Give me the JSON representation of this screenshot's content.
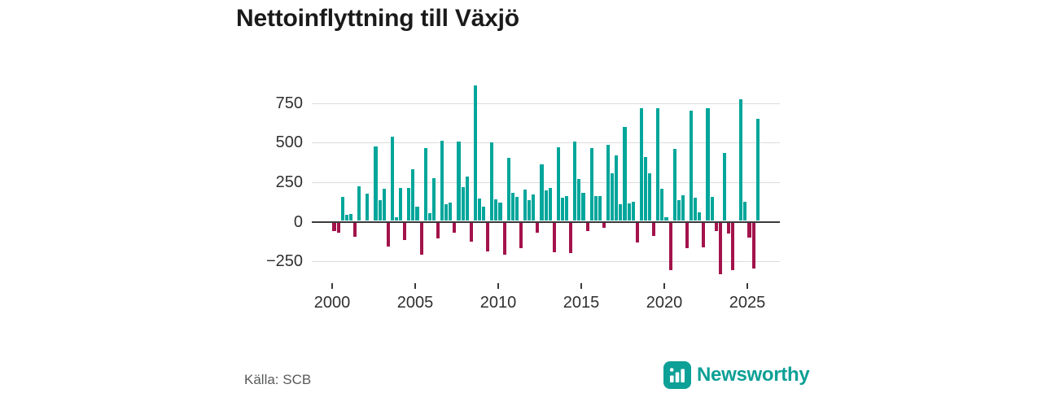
{
  "header": {
    "title": "Nettoinflyttning till Växjö"
  },
  "footer": {
    "source_label": "Källa: SCB",
    "brand_name": "Newsworthy"
  },
  "colors": {
    "positive": "#00A69B",
    "negative": "#A3134B",
    "brand": "#0DA096",
    "grid": "#dcdcdc",
    "axis": "#3a3a3a",
    "tick_text": "#303030",
    "source_text": "#58595b",
    "title_text": "#1a1a1a"
  },
  "chart_data": {
    "type": "bar",
    "title": "Nettoinflyttning till Växjö",
    "frequency": "quarterly",
    "start": "2000-Q1",
    "end": "2025-Q3",
    "values_by_year": {
      "2000": [
        -50,
        -60,
        150,
        40
      ],
      "2001": [
        45,
        -85,
        220,
        0
      ],
      "2002": [
        170,
        0,
        470,
        130
      ],
      "2003": [
        205,
        -150,
        530,
        25
      ],
      "2004": [
        210,
        -110,
        210,
        325
      ],
      "2005": [
        90,
        -200,
        460,
        50
      ],
      "2006": [
        270,
        -100,
        505,
        105
      ],
      "2007": [
        115,
        -60,
        500,
        215
      ],
      "2008": [
        280,
        -120,
        855,
        140
      ],
      "2009": [
        90,
        -180,
        495,
        135
      ],
      "2010": [
        115,
        -200,
        400,
        175
      ],
      "2011": [
        150,
        -160,
        200,
        130
      ],
      "2012": [
        165,
        -60,
        355,
        195
      ],
      "2013": [
        210,
        -185,
        465,
        145
      ],
      "2014": [
        155,
        -190,
        500,
        265
      ],
      "2015": [
        175,
        -50,
        460,
        155
      ],
      "2016": [
        155,
        -30,
        480,
        300
      ],
      "2017": [
        415,
        105,
        595,
        110
      ],
      "2018": [
        120,
        -125,
        715,
        405
      ],
      "2019": [
        300,
        -80,
        710,
        205
      ],
      "2020": [
        25,
        -300,
        455,
        130
      ],
      "2021": [
        160,
        -160,
        695,
        145
      ],
      "2022": [
        55,
        -155,
        710,
        150
      ],
      "2023": [
        -50,
        -325,
        430,
        -65
      ],
      "2024": [
        -300,
        0,
        770,
        120
      ],
      "2025": [
        -95,
        -290,
        645
      ]
    },
    "yticks": [
      750,
      500,
      250,
      0,
      -250
    ],
    "xticks": [
      2000,
      2005,
      2010,
      2015,
      2020,
      2025
    ],
    "ylim": [
      -350,
      880
    ],
    "grid": true,
    "legend": false
  }
}
